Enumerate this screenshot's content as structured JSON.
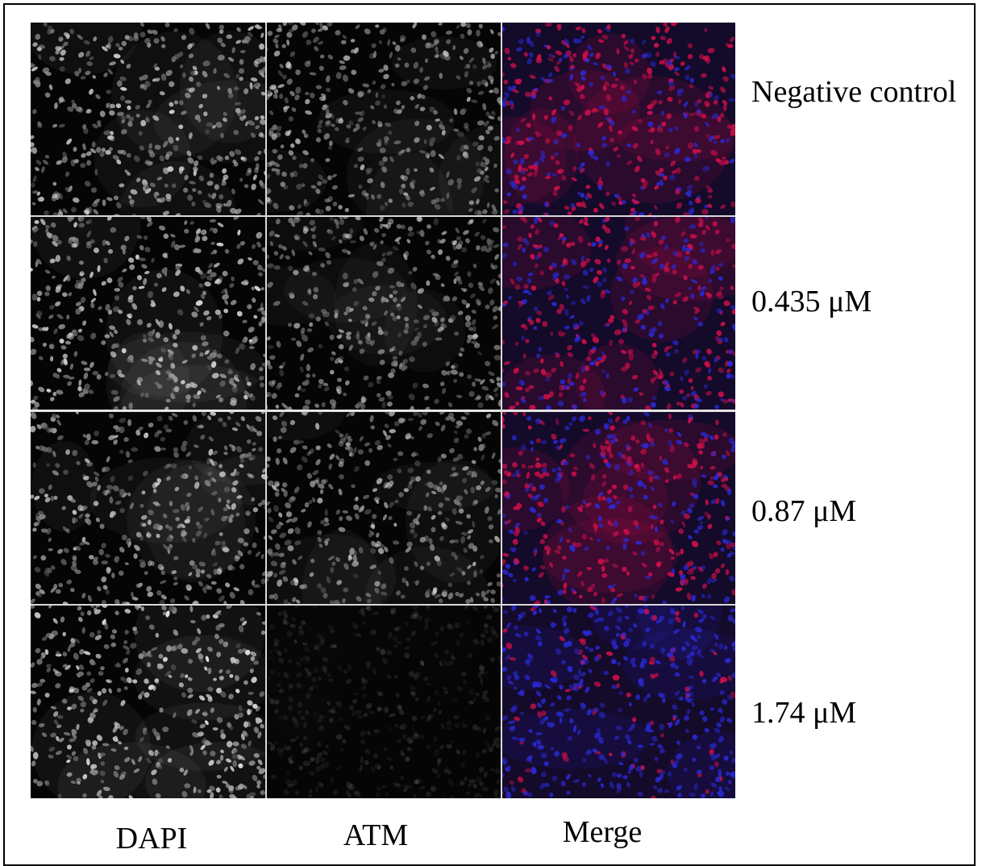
{
  "figure": {
    "rows": [
      {
        "label": "Negative control",
        "dapi": 0.9,
        "atm": 0.75,
        "merge_red": 0.85,
        "merge_blue": 0.45
      },
      {
        "label": "0.435 μM",
        "dapi": 0.95,
        "atm": 0.7,
        "merge_red": 0.8,
        "merge_blue": 0.6
      },
      {
        "label": "0.87 μM",
        "dapi": 0.85,
        "atm": 0.75,
        "merge_red": 0.75,
        "merge_blue": 0.55
      },
      {
        "label": "1.74 μM",
        "dapi": 1.0,
        "atm": 0.15,
        "merge_red": 0.2,
        "merge_blue": 1.0
      }
    ],
    "columns": [
      "DAPI",
      "ATM",
      "Merge"
    ],
    "colors": {
      "background": "#ffffff",
      "frame": "#000000",
      "grid_line": "#d9d9d9",
      "nucleus_gray": "#c8c8c8",
      "merge_red": "#d0104a",
      "merge_blue": "#2a2ad8"
    }
  }
}
